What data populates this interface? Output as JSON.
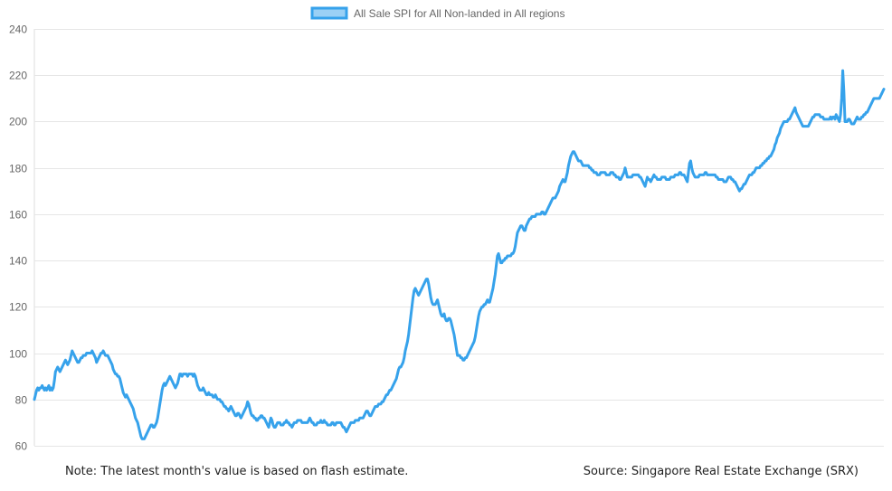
{
  "chart_data": {
    "type": "line",
    "legend_position": "top-center",
    "grid": true,
    "ylim": [
      60,
      240
    ],
    "yticks": [
      60,
      80,
      100,
      120,
      140,
      160,
      180,
      200,
      220,
      240
    ],
    "series": [
      {
        "name": "All Sale SPI for All Non-landed in All regions",
        "color": "#36a2eb",
        "fill": "#9ad0f5",
        "values": [
          80,
          82,
          84,
          85,
          84,
          85,
          85,
          86,
          85,
          84,
          85,
          84,
          85,
          86,
          84,
          85,
          84,
          85,
          88,
          92,
          93,
          94,
          93,
          92,
          93,
          94,
          95,
          96,
          97,
          96,
          95,
          96,
          97,
          99,
          101,
          100,
          99,
          98,
          97,
          96,
          96,
          97,
          98,
          98,
          99,
          99,
          99,
          100,
          100,
          100,
          100,
          100,
          101,
          100,
          99,
          98,
          96,
          97,
          98,
          99,
          100,
          100,
          101,
          100,
          99,
          99,
          99,
          98,
          97,
          96,
          95,
          93,
          92,
          91,
          91,
          90,
          90,
          89,
          87,
          85,
          83,
          82,
          81,
          82,
          81,
          80,
          79,
          78,
          77,
          76,
          74,
          72,
          71,
          70,
          68,
          66,
          64,
          63,
          63,
          63,
          64,
          65,
          66,
          67,
          68,
          69,
          69,
          68,
          68,
          69,
          70,
          72,
          75,
          78,
          81,
          84,
          86,
          87,
          86,
          87,
          88,
          89,
          90,
          89,
          88,
          87,
          86,
          85,
          86,
          87,
          89,
          91,
          91,
          90,
          91,
          91,
          91,
          91,
          90,
          91,
          91,
          91,
          91,
          90,
          91,
          90,
          88,
          86,
          85,
          84,
          84,
          84,
          85,
          84,
          83,
          82,
          82,
          83,
          82,
          82,
          82,
          81,
          81,
          82,
          81,
          80,
          80,
          80,
          79,
          79,
          78,
          77,
          77,
          76,
          76,
          75,
          76,
          77,
          76,
          75,
          74,
          73,
          73,
          74,
          74,
          73,
          72,
          73,
          74,
          75,
          76,
          77,
          79,
          78,
          76,
          74,
          73,
          73,
          72,
          72,
          71,
          71,
          72,
          72,
          73,
          73,
          72,
          72,
          71,
          70,
          69,
          68,
          70,
          72,
          71,
          69,
          68,
          68,
          69,
          70,
          70,
          70,
          69,
          69,
          69,
          70,
          70,
          71,
          70,
          70,
          69,
          69,
          68,
          69,
          70,
          70,
          70,
          71,
          71,
          71,
          71,
          70,
          70,
          70,
          70,
          70,
          70,
          71,
          72,
          71,
          70,
          70,
          69,
          69,
          69,
          70,
          70,
          70,
          71,
          70,
          70,
          71,
          70,
          70,
          69,
          69,
          69,
          69,
          70,
          70,
          69,
          69,
          70,
          70,
          70,
          70,
          70,
          69,
          68,
          68,
          67,
          66,
          67,
          68,
          69,
          70,
          70,
          70,
          70,
          71,
          71,
          71,
          71,
          72,
          72,
          72,
          72,
          73,
          74,
          75,
          75,
          74,
          73,
          73,
          74,
          75,
          76,
          77,
          77,
          77,
          78,
          78,
          78,
          79,
          79,
          80,
          81,
          82,
          82,
          83,
          84,
          84,
          85,
          86,
          87,
          88,
          89,
          91,
          93,
          94,
          94,
          95,
          96,
          98,
          101,
          103,
          105,
          108,
          112,
          116,
          120,
          124,
          127,
          128,
          127,
          126,
          125,
          126,
          127,
          128,
          129,
          130,
          131,
          132,
          132,
          130,
          127,
          124,
          122,
          121,
          121,
          121,
          122,
          123,
          121,
          119,
          117,
          116,
          116,
          117,
          115,
          114,
          114,
          115,
          115,
          114,
          112,
          110,
          108,
          105,
          102,
          99,
          99,
          99,
          98,
          98,
          97,
          97,
          98,
          98,
          99,
          100,
          101,
          102,
          103,
          104,
          105,
          107,
          110,
          113,
          116,
          118,
          119,
          120,
          120,
          121,
          121,
          122,
          123,
          122,
          122,
          124,
          126,
          128,
          131,
          134,
          138,
          142,
          143,
          141,
          139,
          139,
          140,
          140,
          141,
          141,
          142,
          142,
          142,
          142,
          143,
          143,
          144,
          146,
          149,
          152,
          153,
          154,
          155,
          155,
          154,
          153,
          153,
          155,
          156,
          157,
          158,
          158,
          159,
          159,
          159,
          159,
          160,
          160,
          160,
          160,
          160,
          161,
          161,
          160,
          160,
          161,
          162,
          163,
          164,
          165,
          166,
          167,
          167,
          167,
          168,
          169,
          170,
          172,
          173,
          174,
          175,
          174,
          174,
          176,
          178,
          181,
          183,
          185,
          186,
          187,
          187,
          186,
          185,
          184,
          183,
          183,
          183,
          182,
          181,
          181,
          181,
          181,
          181,
          181,
          180,
          180,
          179,
          179,
          178,
          178,
          178,
          177,
          177,
          177,
          178,
          178,
          178,
          178,
          178,
          177,
          177,
          177,
          177,
          178,
          178,
          178,
          177,
          177,
          176,
          176,
          176,
          175,
          175,
          176,
          177,
          178,
          180,
          178,
          176,
          176,
          176,
          176,
          176,
          177,
          177,
          177,
          177,
          177,
          177,
          176,
          176,
          175,
          174,
          173,
          172,
          174,
          176,
          175,
          175,
          174,
          175,
          176,
          177,
          176,
          176,
          175,
          175,
          175,
          175,
          176,
          176,
          176,
          176,
          175,
          175,
          175,
          175,
          176,
          176,
          176,
          176,
          177,
          177,
          177,
          177,
          178,
          178,
          177,
          177,
          177,
          176,
          175,
          174,
          178,
          182,
          183,
          180,
          178,
          177,
          176,
          176,
          176,
          176,
          177,
          177,
          177,
          177,
          177,
          178,
          178,
          177,
          177,
          177,
          177,
          177,
          177,
          177,
          177,
          176,
          176,
          175,
          175,
          175,
          175,
          175,
          174,
          174,
          174,
          175,
          176,
          176,
          176,
          175,
          175,
          174,
          174,
          173,
          172,
          171,
          170,
          171,
          171,
          172,
          173,
          173,
          174,
          175,
          176,
          177,
          177,
          177,
          178,
          178,
          179,
          180,
          180,
          180,
          180,
          181,
          181,
          182,
          182,
          183,
          183,
          184,
          184,
          185,
          185,
          186,
          187,
          188,
          190,
          191,
          193,
          194,
          195,
          197,
          198,
          199,
          200,
          200,
          200,
          200,
          201,
          201,
          202,
          203,
          204,
          205,
          206,
          204,
          203,
          202,
          201,
          200,
          199,
          198,
          198,
          198,
          198,
          198,
          198,
          199,
          200,
          201,
          202,
          202,
          203,
          203,
          203,
          203,
          203,
          202,
          202,
          202,
          201,
          201,
          201,
          201,
          201,
          201,
          202,
          201,
          202,
          202,
          201,
          203,
          202,
          201,
          200,
          203,
          210,
          222,
          213,
          200,
          200,
          200,
          201,
          201,
          200,
          199,
          199,
          199,
          200,
          201,
          202,
          201,
          201,
          201,
          202,
          202,
          203,
          203,
          204,
          204,
          205,
          206,
          207,
          208,
          209,
          210,
          210,
          210,
          210,
          210,
          210,
          211,
          212,
          213,
          214
        ]
      }
    ]
  },
  "footer": {
    "note": "Note: The latest month's value is based on flash estimate.",
    "source": "Source: Singapore Real Estate Exchange (SRX)"
  }
}
